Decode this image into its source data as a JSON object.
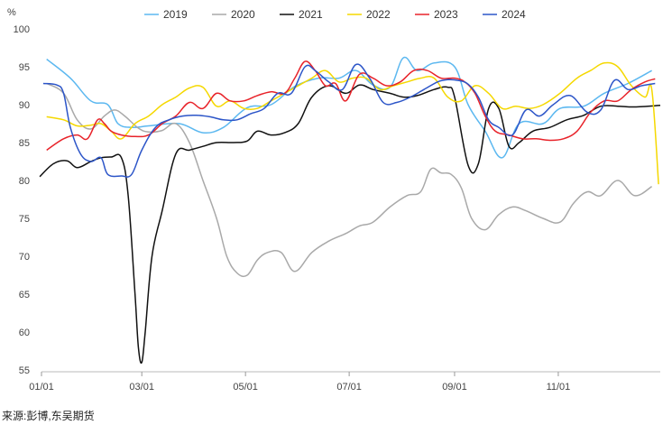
{
  "chart_data": {
    "type": "line",
    "ylabel": "%",
    "ylim": [
      55,
      100
    ],
    "yticks": [
      55,
      60,
      65,
      70,
      75,
      80,
      85,
      90,
      95,
      100
    ],
    "xlim": [
      1,
      365
    ],
    "xticks": [
      {
        "label": "01/01",
        "day": 1
      },
      {
        "label": "03/01",
        "day": 60
      },
      {
        "label": "05/01",
        "day": 121
      },
      {
        "label": "07/01",
        "day": 182
      },
      {
        "label": "09/01",
        "day": 244
      },
      {
        "label": "11/01",
        "day": 305
      }
    ],
    "legend_position": "top-center",
    "grid": false,
    "series": [
      {
        "name": "2019",
        "color": "#5cb8f0",
        "x": [
          4,
          18,
          30,
          40,
          46,
          54,
          64,
          82,
          96,
          108,
          122,
          136,
          150,
          164,
          176,
          186,
          196,
          206,
          214,
          222,
          232,
          244,
          252,
          262,
          272,
          282,
          296,
          306,
          320,
          332,
          346,
          360
        ],
        "y": [
          96,
          93.5,
          90.5,
          90,
          87.5,
          87,
          87.2,
          87.5,
          86.3,
          87,
          89.6,
          90,
          92.4,
          93.5,
          93.5,
          94.5,
          92.6,
          92.3,
          96.2,
          94.5,
          95.5,
          95,
          90,
          86.5,
          83,
          87.5,
          87.5,
          89.5,
          89.8,
          91.5,
          92.8,
          94.5
        ]
      },
      {
        "name": "2020",
        "color": "#a9a9a9",
        "x": [
          4,
          14,
          22,
          30,
          38,
          44,
          50,
          58,
          64,
          72,
          80,
          88,
          96,
          104,
          110,
          116,
          122,
          128,
          134,
          142,
          150,
          160,
          170,
          180,
          188,
          196,
          206,
          216,
          224,
          230,
          236,
          242,
          248,
          254,
          262,
          270,
          278,
          286,
          296,
          306,
          314,
          322,
          330,
          340,
          350,
          360
        ],
        "y": [
          92.8,
          91.5,
          88,
          86.8,
          88.5,
          89.3,
          88.5,
          86.9,
          86.4,
          86.6,
          87.5,
          85,
          80,
          75,
          70,
          67.8,
          67.5,
          69.5,
          70.5,
          70.5,
          68,
          70.5,
          72,
          73,
          74,
          74.5,
          76.5,
          78,
          78.5,
          81.5,
          81,
          80.8,
          79,
          75,
          73.5,
          75.5,
          76.5,
          76,
          75,
          74.5,
          77,
          78.5,
          78,
          80,
          78,
          79.2
        ]
      },
      {
        "name": "2021",
        "color": "#111111",
        "x": [
          0,
          8,
          16,
          22,
          30,
          36,
          42,
          48,
          52,
          56,
          58,
          60,
          62,
          66,
          72,
          80,
          88,
          96,
          104,
          114,
          122,
          128,
          136,
          144,
          152,
          160,
          170,
          180,
          188,
          196,
          206,
          214,
          222,
          232,
          240,
          244,
          252,
          258,
          264,
          270,
          276,
          282,
          290,
          300,
          310,
          320,
          330,
          340,
          350,
          365
        ],
        "y": [
          80.5,
          82.2,
          82.6,
          81.7,
          82.5,
          83,
          83.1,
          83,
          78,
          65,
          58,
          56,
          60,
          70,
          76,
          83.5,
          84,
          84.5,
          85,
          85,
          85.2,
          86.5,
          86,
          86.3,
          87.5,
          91,
          92.5,
          91.5,
          92.6,
          92,
          91.5,
          91,
          91.2,
          92,
          92.3,
          91,
          82,
          82.2,
          89.5,
          89.5,
          84.5,
          85,
          86.5,
          87,
          88,
          88.6,
          89.8,
          89.8,
          89.7,
          89.9
        ]
      },
      {
        "name": "2022",
        "color": "#f5d800",
        "x": [
          4,
          14,
          22,
          30,
          36,
          42,
          48,
          56,
          64,
          72,
          80,
          88,
          96,
          104,
          112,
          120,
          128,
          136,
          144,
          152,
          160,
          168,
          176,
          184,
          192,
          200,
          208,
          216,
          224,
          232,
          240,
          248,
          256,
          264,
          272,
          280,
          288,
          296,
          306,
          316,
          324,
          332,
          340,
          348,
          356,
          360,
          364
        ],
        "y": [
          88.4,
          88,
          87.2,
          87.3,
          87.5,
          86.5,
          85.5,
          87.5,
          88.5,
          90,
          91,
          92.2,
          92.3,
          89.8,
          90.5,
          89.5,
          89.5,
          90.5,
          91.5,
          92.5,
          93.5,
          94.5,
          93,
          93.5,
          93.5,
          92,
          92.5,
          93,
          93.5,
          93.5,
          91,
          90.5,
          92.5,
          91.5,
          89.5,
          89.8,
          89.5,
          90,
          91.5,
          93.5,
          94.5,
          95.5,
          95,
          92.5,
          91,
          92,
          79.5
        ]
      },
      {
        "name": "2023",
        "color": "#e8232a",
        "x": [
          4,
          14,
          22,
          28,
          34,
          38,
          42,
          48,
          56,
          64,
          72,
          80,
          88,
          96,
          104,
          112,
          120,
          128,
          136,
          144,
          150,
          156,
          162,
          168,
          174,
          180,
          188,
          196,
          204,
          212,
          220,
          228,
          236,
          244,
          250,
          256,
          262,
          268,
          276,
          284,
          292,
          300,
          308,
          316,
          324,
          332,
          340,
          348,
          356,
          362
        ],
        "y": [
          84,
          85.5,
          86,
          85.5,
          88,
          87.5,
          86.5,
          86,
          85.8,
          86,
          87.5,
          88.5,
          90.3,
          89.5,
          91.5,
          90.5,
          90.5,
          91.2,
          91.7,
          91.5,
          93.5,
          95.7,
          94.5,
          92.5,
          92.8,
          90.5,
          94,
          93.5,
          92.5,
          93,
          94.5,
          94.5,
          93.5,
          93.5,
          93,
          91.5,
          88.5,
          86.5,
          86,
          85.5,
          85.5,
          85.3,
          85.5,
          86.5,
          89,
          90.5,
          90.5,
          92,
          93,
          93.4
        ]
      },
      {
        "name": "2024",
        "color": "#2c55c8",
        "x": [
          2,
          10,
          14,
          18,
          24,
          30,
          36,
          40,
          48,
          54,
          60,
          68,
          76,
          84,
          92,
          100,
          108,
          116,
          124,
          132,
          140,
          148,
          156,
          162,
          170,
          178,
          186,
          194,
          202,
          210,
          218,
          226,
          234,
          240,
          246,
          252,
          258,
          264,
          270,
          278,
          286,
          294,
          302,
          312,
          322,
          330,
          338,
          346,
          354,
          362
        ],
        "y": [
          92.8,
          92.6,
          91.5,
          87,
          83.5,
          82.5,
          83,
          80.8,
          80.6,
          80.8,
          84,
          87,
          88,
          88.5,
          88.6,
          88.4,
          88,
          88,
          88.8,
          89.5,
          91.5,
          91.5,
          95,
          94.5,
          93,
          92,
          95.3,
          93.5,
          90.3,
          90.3,
          91,
          92,
          93,
          93.3,
          93.2,
          92.7,
          91,
          88,
          87,
          86,
          89.3,
          88.5,
          90,
          91.2,
          89,
          89.3,
          93.2,
          92,
          92.5,
          92.8
        ]
      }
    ]
  },
  "source_note": "来源:彭博,东吴期货"
}
